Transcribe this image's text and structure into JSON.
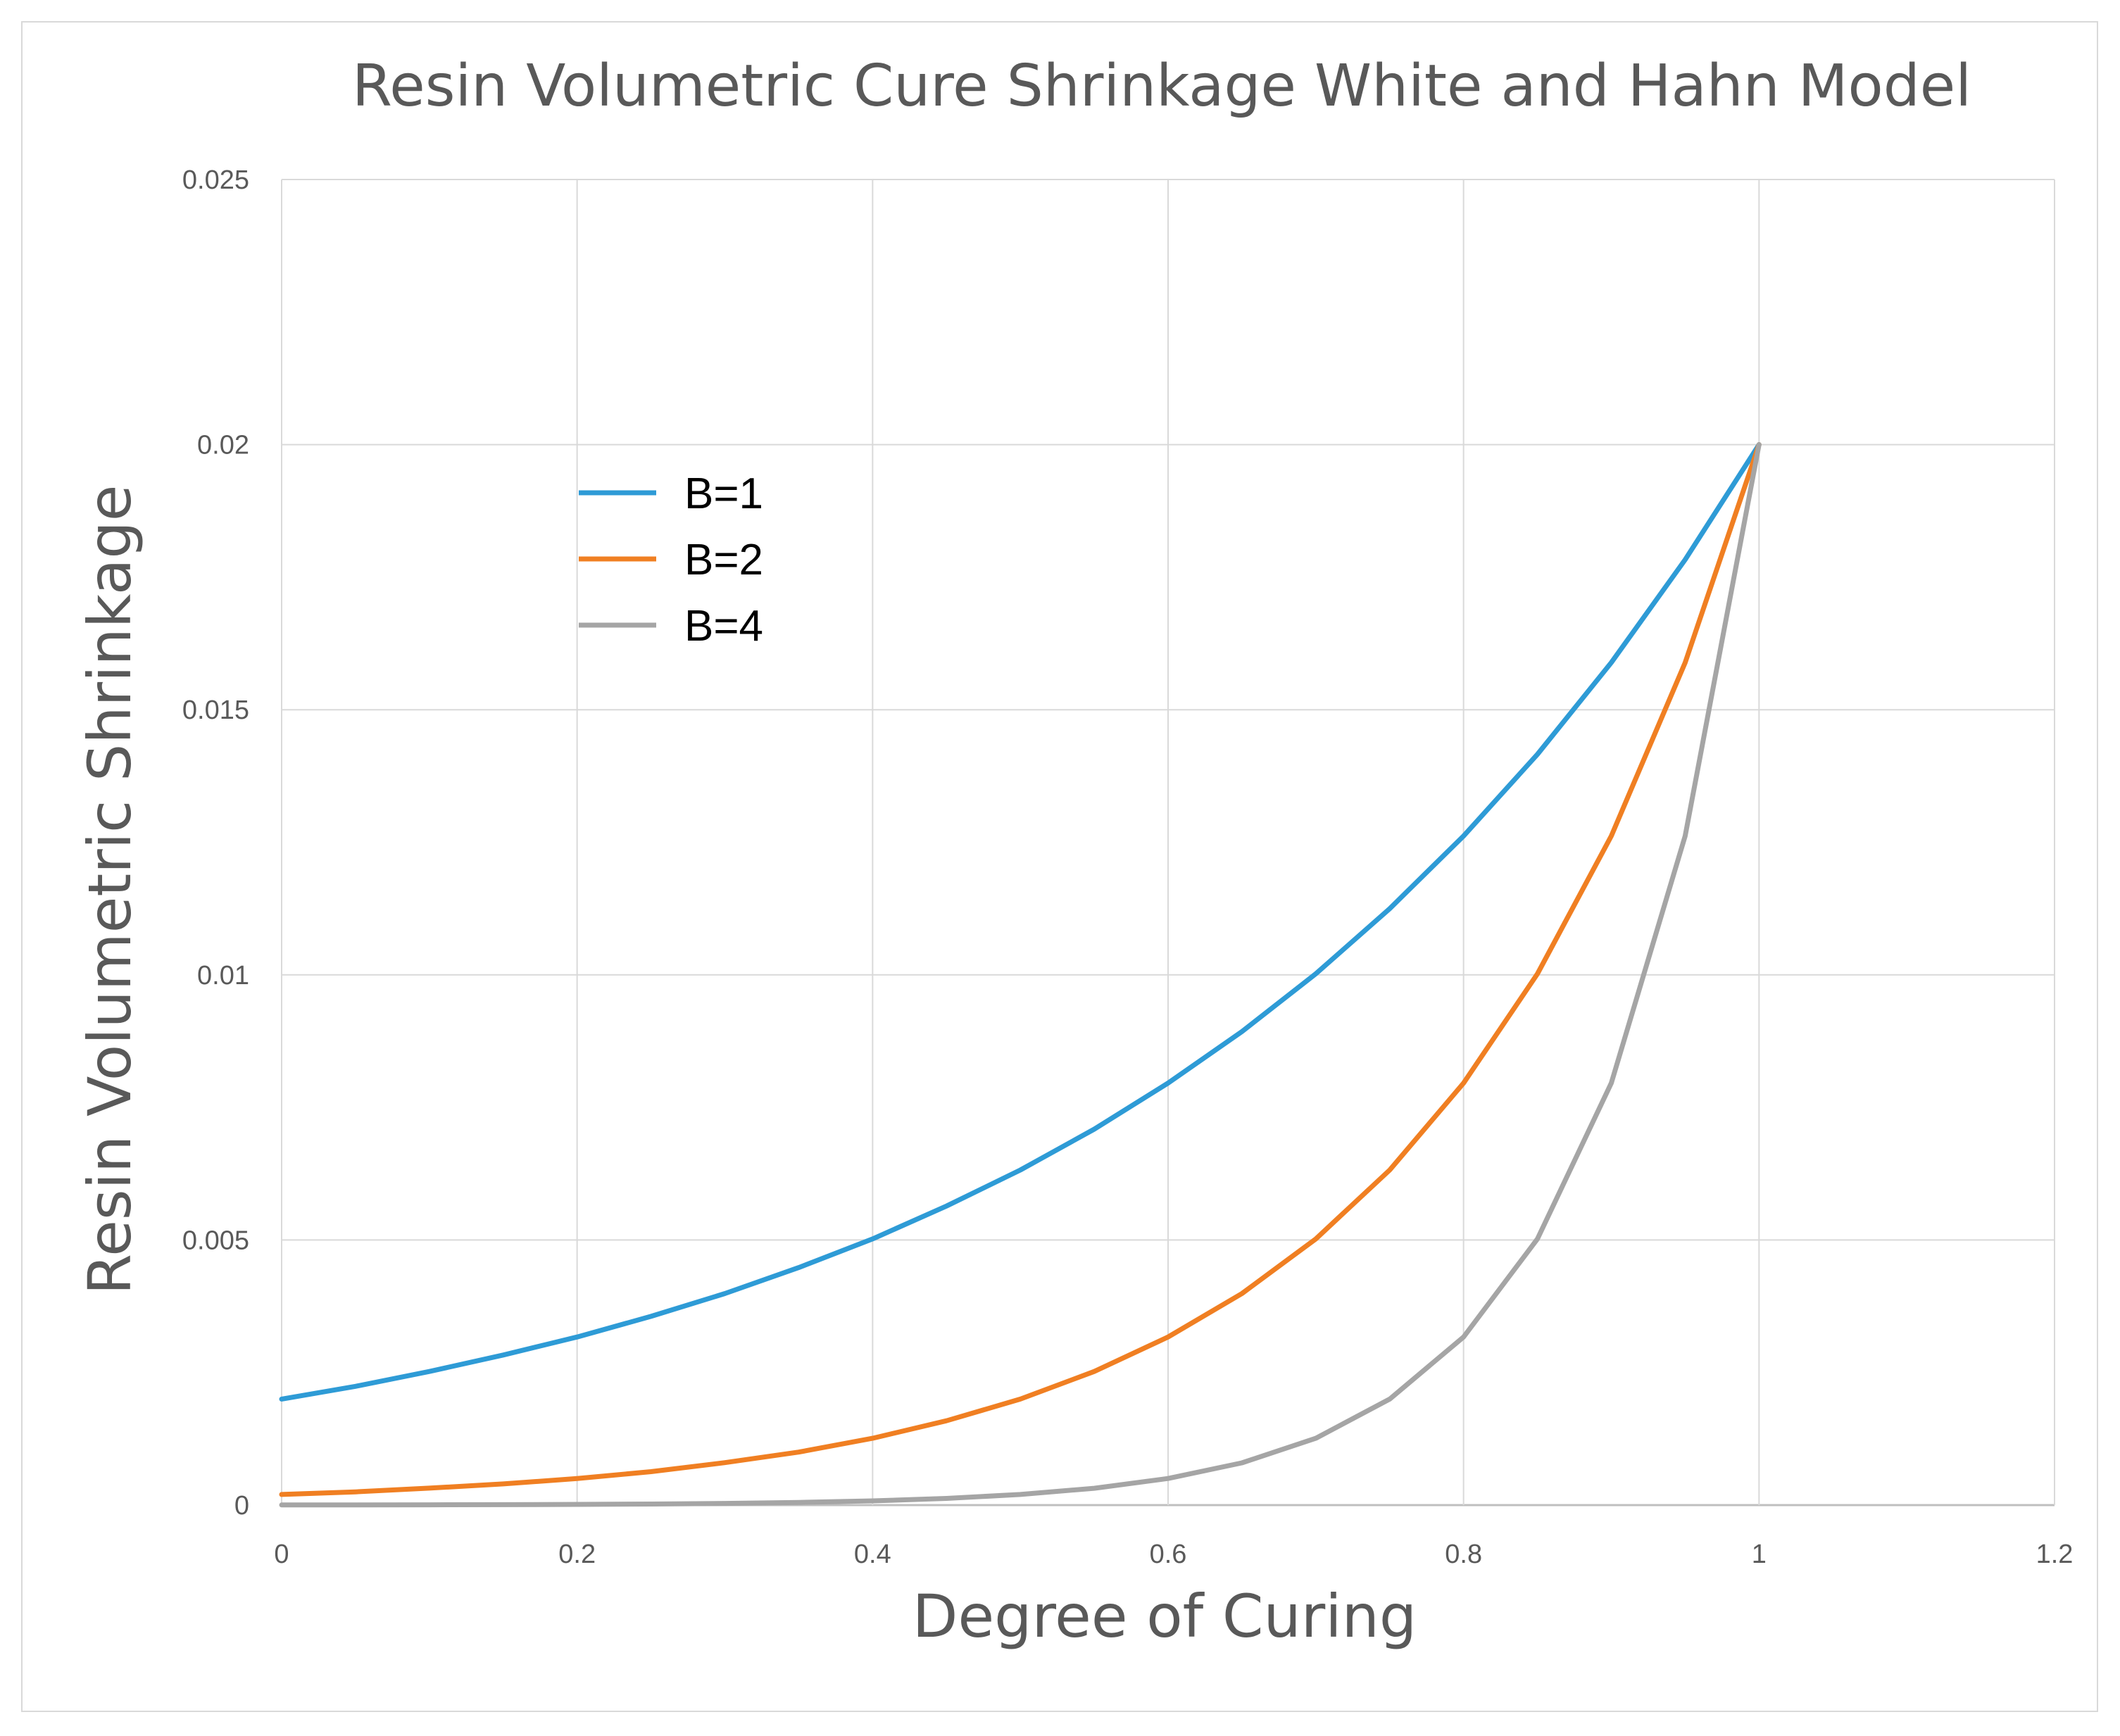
{
  "chart_data": {
    "type": "line",
    "title": "Resin Volumetric Cure Shrinkage White and Hahn Model",
    "xlabel": "Degree of Curing",
    "ylabel": "Resin Volumetric Shrinkage",
    "xlim": [
      0,
      1.2
    ],
    "ylim": [
      0,
      0.025
    ],
    "x_ticks": [
      0,
      0.2,
      0.4,
      0.6,
      0.8,
      1,
      1.2
    ],
    "x_tick_labels": [
      "0",
      "0.2",
      "0.4",
      "0.6",
      "0.8",
      "1",
      "1.2"
    ],
    "y_ticks": [
      0,
      0.005,
      0.01,
      0.015,
      0.02,
      0.025
    ],
    "y_tick_labels": [
      "0",
      "0.005",
      "0.01",
      "0.015",
      "0.02",
      "0.025"
    ],
    "grid": true,
    "legend_position": "upper-left-inside",
    "x": [
      0,
      0.05,
      0.1,
      0.15,
      0.2,
      0.25,
      0.3,
      0.35,
      0.4,
      0.45,
      0.5,
      0.55,
      0.6,
      0.65,
      0.7,
      0.75,
      0.8,
      0.85,
      0.9,
      0.95,
      1.0
    ],
    "series": [
      {
        "name": "B=1",
        "color": "#2e9bd6",
        "values": [
          0.002,
          0.00224,
          0.00252,
          0.00283,
          0.00317,
          0.00356,
          0.00399,
          0.00448,
          0.00502,
          0.00564,
          0.00632,
          0.00709,
          0.00796,
          0.00893,
          0.01002,
          0.01125,
          0.01262,
          0.01416,
          0.01589,
          0.01783,
          0.02
        ]
      },
      {
        "name": "B=2",
        "color": "#f07f22",
        "values": [
          0.0002,
          0.00025,
          0.00032,
          0.0004,
          0.0005,
          0.00063,
          0.0008,
          0.001,
          0.00126,
          0.00159,
          0.002,
          0.00252,
          0.00317,
          0.00399,
          0.00502,
          0.00632,
          0.00796,
          0.01002,
          0.01262,
          0.01589,
          0.02
        ]
      },
      {
        "name": "B=4",
        "color": "#a5a5a5",
        "values": [
          2e-06,
          3e-06,
          5e-06,
          8e-06,
          1.3e-05,
          2e-05,
          3.2e-05,
          5e-05,
          8e-05,
          0.000126,
          0.0002,
          0.000317,
          0.000502,
          0.000796,
          0.00126,
          0.002,
          0.00317,
          0.00502,
          0.00796,
          0.01262,
          0.02
        ]
      }
    ]
  }
}
